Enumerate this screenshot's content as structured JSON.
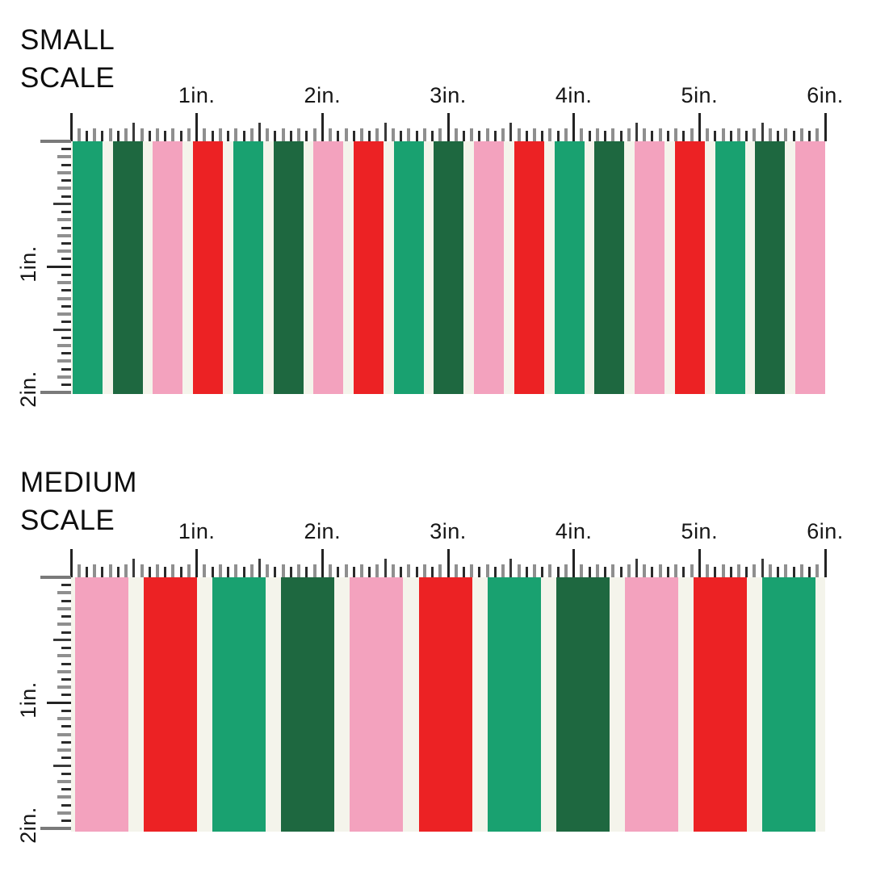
{
  "colors": {
    "green": "#19A170",
    "dark_green": "#1E6840",
    "pink": "#F3A2BE",
    "red": "#EC2224",
    "cream": "#F4F4EB",
    "tick_dark": "#232323",
    "tick_gray": "#8F8F8F",
    "tick_mid": "#3A3A3A",
    "tick_corner": "#7A7A7A",
    "text": "#0d0d0d"
  },
  "rulers": {
    "horizontal_inches": 6,
    "vertical_inches": 2,
    "horizontal_labels": [
      "1in.",
      "2in.",
      "3in.",
      "4in.",
      "5in.",
      "6in."
    ],
    "vertical_labels": [
      "1in.",
      "2in."
    ]
  },
  "sections": [
    {
      "id": "small-scale",
      "title_line1": "SMALL",
      "title_line2": "SCALE",
      "stripe_sequence": [
        "green",
        "dark_green",
        "pink",
        "red",
        "green",
        "dark_green",
        "pink",
        "red",
        "green",
        "dark_green",
        "pink",
        "red",
        "green",
        "dark_green",
        "pink",
        "red",
        "green",
        "dark_green",
        "pink"
      ]
    },
    {
      "id": "medium-scale",
      "title_line1": "MEDIUM",
      "title_line2": "SCALE",
      "stripe_sequence": [
        "pink",
        "red",
        "green",
        "dark_green",
        "pink",
        "red",
        "green",
        "dark_green",
        "pink",
        "red",
        "green"
      ]
    }
  ]
}
